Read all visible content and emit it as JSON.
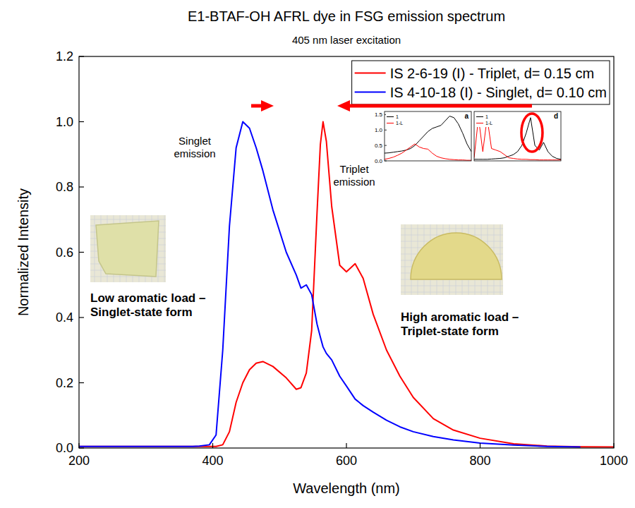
{
  "chart_data": [
    {
      "type": "line",
      "title": "E1-BTAF-OH AFRL dye in FSG emission spectrum",
      "subtitle": "405 nm laser excitation",
      "x_label": "Wavelength (nm)",
      "y_label": "Normalized Intensity",
      "annotations": [
        "Singlet emission",
        "Triplet emission",
        "Low aromatic load – Singlet-state form",
        "High aromatic load – Triplet-state form"
      ],
      "x": [
        200,
        300,
        370,
        380,
        395,
        405,
        415,
        425,
        435,
        445,
        455,
        465,
        475,
        490,
        510,
        525,
        532,
        540,
        548,
        556,
        561,
        565,
        570,
        578,
        590,
        600,
        613,
        625,
        640,
        660,
        680,
        700,
        730,
        760,
        800,
        850,
        900,
        950,
        1000
      ],
      "series": [
        {
          "name": "IS 2-6-19 (I) - Triplet, d= 0.15 cm",
          "color": "#ff0000",
          "values": [
            0.005,
            0.005,
            0.005,
            0.005,
            0.005,
            0.005,
            0.01,
            0.05,
            0.14,
            0.2,
            0.24,
            0.26,
            0.265,
            0.25,
            0.215,
            0.18,
            0.185,
            0.23,
            0.36,
            0.72,
            0.93,
            1.0,
            0.94,
            0.74,
            0.56,
            0.54,
            0.565,
            0.52,
            0.41,
            0.3,
            0.22,
            0.155,
            0.09,
            0.055,
            0.03,
            0.013,
            0.006,
            0.004,
            0.003
          ]
        },
        {
          "name": "IS 4-10-18 (I) - Singlet, d= 0.10 cm",
          "color": "#0000ff",
          "values": [
            0.005,
            0.005,
            0.005,
            0.006,
            0.01,
            0.04,
            0.3,
            0.68,
            0.92,
            1.0,
            0.98,
            0.92,
            0.85,
            0.73,
            0.6,
            0.53,
            0.49,
            0.5,
            0.47,
            0.38,
            0.34,
            0.31,
            0.29,
            0.27,
            0.22,
            0.19,
            0.15,
            0.13,
            0.11,
            0.085,
            0.065,
            0.05,
            0.035,
            0.025,
            0.015,
            0.009,
            0.005,
            0.003,
            null
          ]
        }
      ],
      "xlim": [
        200,
        1000
      ],
      "xticks": [
        200,
        400,
        600,
        800,
        1000
      ],
      "ylim": [
        0,
        1.2
      ],
      "yticks": [
        {
          "value": 0,
          "label": "0.0"
        },
        0.2,
        0.4,
        0.6,
        0.8,
        {
          "value": 1,
          "label": "1.0"
        },
        1.2
      ],
      "grid": false,
      "legend": "top-right"
    },
    {
      "type": "line",
      "title": "a",
      "x": [
        0,
        1,
        2,
        3,
        4,
        5,
        6,
        7,
        8,
        9,
        10,
        11,
        12,
        13,
        14,
        15,
        16,
        17,
        18,
        19,
        20
      ],
      "series": [
        {
          "name": "1",
          "color": "#000000",
          "values": [
            0.25,
            0.26,
            0.28,
            0.3,
            0.32,
            0.35,
            0.4,
            0.5,
            0.65,
            0.8,
            0.95,
            1.05,
            1.1,
            1.15,
            1.3,
            1.45,
            1.4,
            1.2,
            0.9,
            0.55,
            0.3
          ]
        },
        {
          "name": "1-L",
          "color": "#ff0000",
          "values": [
            0.05,
            0.08,
            0.12,
            0.18,
            0.25,
            0.35,
            0.45,
            0.55,
            0.45,
            0.4,
            0.38,
            0.25,
            0.15,
            0.1,
            0.07,
            0.05,
            0.04,
            0.03,
            0.03,
            0.02,
            0.02
          ]
        }
      ],
      "xlim": [
        0,
        20
      ],
      "ylim": [
        0,
        1.6
      ],
      "yticks": [
        {
          "value": 0,
          "label": "0.0"
        },
        0.5,
        {
          "value": 1,
          "label": "1.0"
        },
        1.5
      ],
      "tick_labels": "y",
      "legend": "top-left"
    },
    {
      "type": "line",
      "title": "d",
      "x": [
        0,
        1,
        2,
        3,
        4,
        5,
        6,
        7,
        8,
        9,
        10,
        11,
        12,
        13,
        14,
        15,
        16,
        17,
        18,
        19,
        20
      ],
      "series": [
        {
          "name": "1",
          "color": "#000000",
          "values": [
            0.05,
            0.05,
            0.05,
            0.05,
            0.06,
            0.07,
            0.08,
            0.1,
            0.15,
            0.2,
            0.3,
            0.5,
            0.9,
            1.4,
            0.5,
            0.35,
            0.6,
            0.3,
            0.15,
            0.08,
            0.05
          ]
        },
        {
          "name": "1-L",
          "color": "#ff0000",
          "values": [
            0.1,
            1.4,
            0.3,
            1.4,
            0.4,
            0.35,
            0.3,
            0.2,
            0.1,
            0.08,
            0.06,
            0.05,
            0.05,
            0.04,
            0.04,
            0.03,
            0.03,
            0.03,
            0.03,
            0.03,
            0.03
          ]
        }
      ],
      "xlim": [
        0,
        20
      ],
      "ylim": [
        0,
        1.6
      ],
      "tick_labels": false,
      "legend": "top-left"
    }
  ]
}
